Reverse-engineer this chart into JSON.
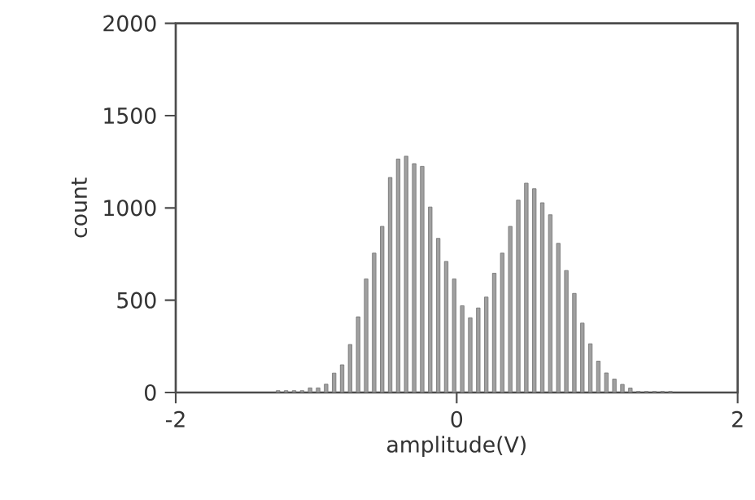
{
  "chart_data": {
    "type": "histogram",
    "xlabel": "amplitude(V)",
    "ylabel": "count",
    "color": "#a0a0a0",
    "bins": [
      -1.3,
      -1.243,
      -1.186,
      -1.129,
      -1.072,
      -1.015,
      -0.958,
      -0.901,
      -0.844,
      -0.787,
      -0.73,
      -0.673,
      -0.616,
      -0.559,
      -0.502,
      -0.445,
      -0.388,
      -0.331,
      -0.274,
      -0.217,
      -0.16,
      -0.103,
      -0.046,
      0.011,
      0.068,
      0.125,
      0.182,
      0.239,
      0.296,
      0.353,
      0.41,
      0.467,
      0.524,
      0.581,
      0.638,
      0.695,
      0.752,
      0.809,
      0.866,
      0.923,
      0.98,
      1.037,
      1.094,
      1.151,
      1.208,
      1.265,
      1.322,
      1.379,
      1.436,
      1.493,
      1.55
    ],
    "values": [
      10,
      10,
      10,
      10,
      25,
      25,
      45,
      105,
      150,
      260,
      410,
      615,
      755,
      900,
      1165,
      1265,
      1280,
      1240,
      1225,
      1005,
      835,
      710,
      615,
      470,
      405,
      458,
      517,
      646,
      755,
      900,
      1042,
      1134,
      1104,
      1028,
      963,
      808,
      661,
      537,
      376,
      264,
      170,
      106,
      73,
      44,
      24,
      6,
      6,
      6,
      6,
      6
    ],
    "xlim": [
      -2,
      2
    ],
    "xticks": [
      -2,
      0,
      2
    ],
    "ylim": [
      0,
      2000
    ],
    "yticks": [
      0,
      500,
      1000,
      1500,
      2000
    ],
    "grid": false
  }
}
